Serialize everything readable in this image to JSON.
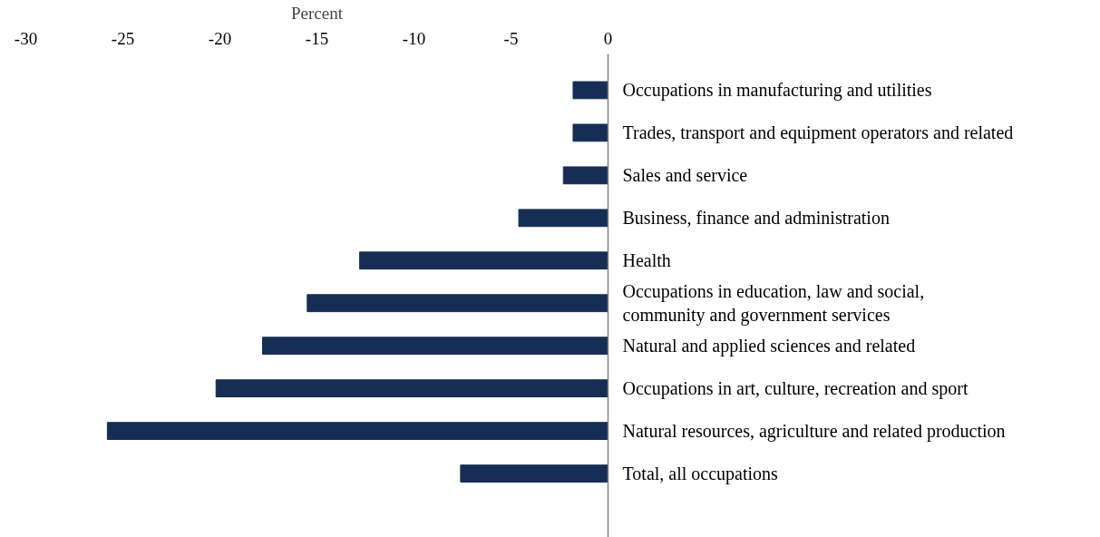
{
  "chart_data": {
    "type": "bar",
    "orientation": "horizontal",
    "xlabel": "Percent",
    "categories": [
      "Occupations in manufacturing and utilities",
      "Trades, transport and equipment operators and related",
      "Sales and service",
      "Business, finance and administration",
      "Health",
      "Occupations in education, law and social,\ncommunity and government services",
      "Natural and applied sciences and related",
      "Occupations in art, culture, recreation and sport",
      "Natural resources, agriculture and related production",
      "Total, all occupations"
    ],
    "values": [
      -1.8,
      -1.8,
      -2.3,
      -4.6,
      -12.8,
      -15.5,
      -17.8,
      -20.2,
      -25.8,
      -7.6
    ],
    "color": "#172e54",
    "xlim": [
      -30,
      0
    ],
    "xticks": [
      -30,
      -25,
      -20,
      -15,
      -10,
      -5,
      0
    ]
  }
}
